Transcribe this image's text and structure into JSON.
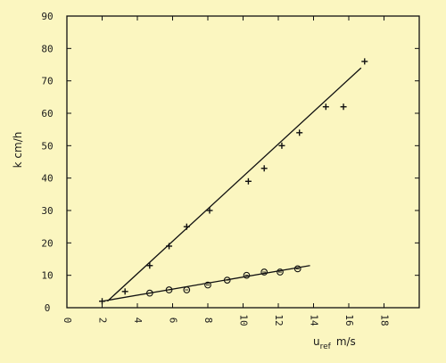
{
  "chart_data": {
    "type": "scatter",
    "xlabel": "u",
    "xlabel_sub": "ref",
    "xlabel_unit": "m/s",
    "ylabel": "k  cm/h",
    "xlim": [
      0,
      20
    ],
    "ylim": [
      0,
      90
    ],
    "x_ticks": [
      "0",
      "2",
      "4",
      "6",
      "8",
      "10",
      "12",
      "14",
      "16",
      "18"
    ],
    "y_ticks": [
      "0",
      "10",
      "20",
      "30",
      "40",
      "50",
      "60",
      "70",
      "80",
      "90"
    ],
    "grid": false,
    "series": [
      {
        "marker": "plus",
        "points": [
          [
            2.0,
            2
          ],
          [
            3.3,
            5
          ],
          [
            4.7,
            13
          ],
          [
            5.8,
            19
          ],
          [
            6.8,
            25
          ],
          [
            8.1,
            30
          ],
          [
            10.3,
            39
          ],
          [
            11.2,
            43
          ],
          [
            12.2,
            50
          ],
          [
            13.2,
            54
          ],
          [
            14.7,
            62
          ],
          [
            15.7,
            62
          ],
          [
            16.9,
            76
          ]
        ],
        "fit": [
          [
            2.3,
            2
          ],
          [
            16.7,
            74
          ]
        ]
      },
      {
        "marker": "circle",
        "points": [
          [
            4.7,
            4.5
          ],
          [
            5.8,
            5.5
          ],
          [
            6.8,
            5.5
          ],
          [
            8.0,
            7
          ],
          [
            9.1,
            8.5
          ],
          [
            10.2,
            10
          ],
          [
            11.2,
            11
          ],
          [
            12.1,
            11
          ],
          [
            13.1,
            12
          ]
        ],
        "fit": [
          [
            2.0,
            2
          ],
          [
            13.8,
            13
          ]
        ]
      }
    ]
  }
}
